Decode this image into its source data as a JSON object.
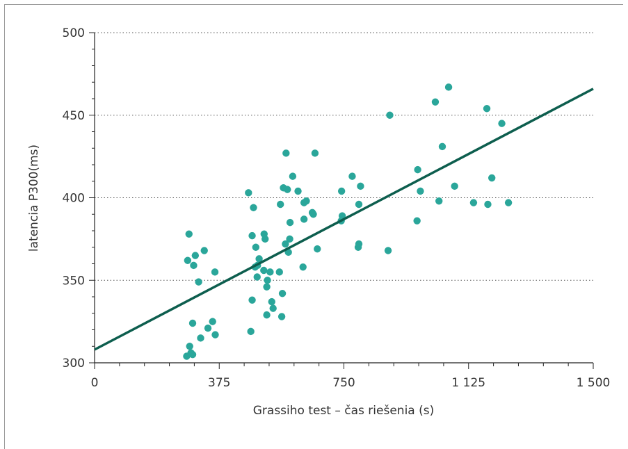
{
  "chart_data": {
    "type": "scatter",
    "title": "",
    "xlabel": "Grassiho test – čas riešenia (s)",
    "ylabel": "latencia P300(ms)",
    "xlim": [
      0,
      1500
    ],
    "ylim": [
      300,
      500
    ],
    "x_ticks": [
      0,
      375,
      750,
      1125,
      1500
    ],
    "x_tick_labels": [
      "0",
      "375",
      "750",
      "1 125",
      "1 500"
    ],
    "y_ticks": [
      300,
      350,
      400,
      450,
      500
    ],
    "y_tick_labels": [
      "300",
      "350",
      "400",
      "450",
      "500"
    ],
    "grid": "horizontal dotted",
    "point_color": "#2aa69a",
    "line_color": "#0d5e4e",
    "trend_line": {
      "x": [
        0,
        1500
      ],
      "y": [
        308,
        466
      ]
    },
    "points": [
      {
        "x": 277,
        "y": 304
      },
      {
        "x": 286,
        "y": 310
      },
      {
        "x": 290,
        "y": 306
      },
      {
        "x": 295,
        "y": 305
      },
      {
        "x": 295,
        "y": 324
      },
      {
        "x": 280,
        "y": 362
      },
      {
        "x": 284,
        "y": 378
      },
      {
        "x": 298,
        "y": 359
      },
      {
        "x": 303,
        "y": 365
      },
      {
        "x": 313,
        "y": 349
      },
      {
        "x": 330,
        "y": 368
      },
      {
        "x": 319,
        "y": 315
      },
      {
        "x": 341,
        "y": 321
      },
      {
        "x": 355,
        "y": 325
      },
      {
        "x": 363,
        "y": 317
      },
      {
        "x": 362,
        "y": 355
      },
      {
        "x": 463,
        "y": 403
      },
      {
        "x": 478,
        "y": 394
      },
      {
        "x": 474,
        "y": 377
      },
      {
        "x": 485,
        "y": 370
      },
      {
        "x": 483,
        "y": 358
      },
      {
        "x": 490,
        "y": 359
      },
      {
        "x": 495,
        "y": 363
      },
      {
        "x": 489,
        "y": 352
      },
      {
        "x": 474,
        "y": 338
      },
      {
        "x": 470,
        "y": 319
      },
      {
        "x": 510,
        "y": 378
      },
      {
        "x": 513,
        "y": 375
      },
      {
        "x": 509,
        "y": 356
      },
      {
        "x": 520,
        "y": 350
      },
      {
        "x": 518,
        "y": 346
      },
      {
        "x": 528,
        "y": 355
      },
      {
        "x": 533,
        "y": 337
      },
      {
        "x": 537,
        "y": 333
      },
      {
        "x": 518,
        "y": 329
      },
      {
        "x": 556,
        "y": 355
      },
      {
        "x": 563,
        "y": 328
      },
      {
        "x": 565,
        "y": 342
      },
      {
        "x": 559,
        "y": 396
      },
      {
        "x": 568,
        "y": 406
      },
      {
        "x": 576,
        "y": 427
      },
      {
        "x": 580,
        "y": 405
      },
      {
        "x": 574,
        "y": 372
      },
      {
        "x": 583,
        "y": 367
      },
      {
        "x": 587,
        "y": 375
      },
      {
        "x": 588,
        "y": 385
      },
      {
        "x": 596,
        "y": 413
      },
      {
        "x": 612,
        "y": 404
      },
      {
        "x": 630,
        "y": 397
      },
      {
        "x": 637,
        "y": 398
      },
      {
        "x": 630,
        "y": 387
      },
      {
        "x": 627,
        "y": 358
      },
      {
        "x": 655,
        "y": 391
      },
      {
        "x": 658,
        "y": 390
      },
      {
        "x": 663,
        "y": 427
      },
      {
        "x": 670,
        "y": 369
      },
      {
        "x": 743,
        "y": 404
      },
      {
        "x": 742,
        "y": 386
      },
      {
        "x": 745,
        "y": 389
      },
      {
        "x": 775,
        "y": 413
      },
      {
        "x": 795,
        "y": 396
      },
      {
        "x": 800,
        "y": 407
      },
      {
        "x": 793,
        "y": 370
      },
      {
        "x": 795,
        "y": 372
      },
      {
        "x": 883,
        "y": 368
      },
      {
        "x": 888,
        "y": 450
      },
      {
        "x": 970,
        "y": 386
      },
      {
        "x": 972,
        "y": 417
      },
      {
        "x": 980,
        "y": 404
      },
      {
        "x": 1025,
        "y": 458
      },
      {
        "x": 1036,
        "y": 398
      },
      {
        "x": 1046,
        "y": 431
      },
      {
        "x": 1065,
        "y": 467
      },
      {
        "x": 1083,
        "y": 407
      },
      {
        "x": 1140,
        "y": 397
      },
      {
        "x": 1180,
        "y": 454
      },
      {
        "x": 1183,
        "y": 396
      },
      {
        "x": 1195,
        "y": 412
      },
      {
        "x": 1225,
        "y": 445
      },
      {
        "x": 1245,
        "y": 397
      }
    ]
  }
}
